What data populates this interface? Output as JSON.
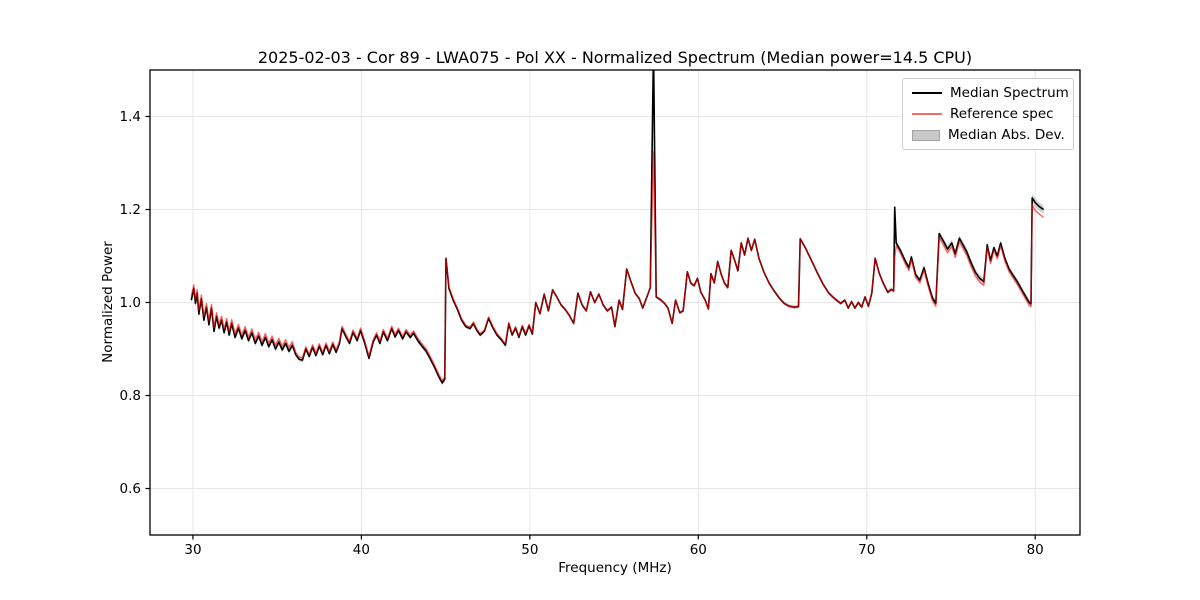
{
  "chart_data": {
    "type": "line",
    "title": "2025-02-03 - Cor 89 - LWA075 - Pol XX - Normalized Spectrum (Median power=14.5 CPU)",
    "xlabel": "Frequency (MHz)",
    "ylabel": "Normalized Power",
    "xlim": [
      27.45,
      82.66
    ],
    "ylim": [
      0.5,
      1.5
    ],
    "xticks": [
      30,
      40,
      50,
      60,
      70,
      80
    ],
    "xticklabels": [
      "30",
      "40",
      "50",
      "60",
      "70",
      "80"
    ],
    "yticks": [
      0.6,
      0.8,
      1.0,
      1.2,
      1.4
    ],
    "yticklabels": [
      "0.6",
      "0.8",
      "1.0",
      "1.2",
      "1.4"
    ],
    "grid": true,
    "grid_color": "#e7e7e7",
    "legend_position": "upper right",
    "series": [
      {
        "name": "Median Spectrum",
        "style": "line",
        "color": "#000000",
        "legend_color": "#000000"
      },
      {
        "name": "Reference spec",
        "style": "line",
        "color": "rgba(255,0,0,0.62)",
        "legend_color": "#f26a6a"
      },
      {
        "name": "Median Abs. Dev.",
        "style": "band",
        "color": "rgba(150,150,150,0.45)",
        "legend_color": "#c9c9c9",
        "legend_border": "#a3a3a3"
      }
    ],
    "points_format": [
      "freq_mhz",
      "median",
      "reference",
      "mad"
    ],
    "points": [
      [
        29.9,
        1.005,
        1.013,
        0.008
      ],
      [
        30.05,
        1.03,
        1.038,
        0.008
      ],
      [
        30.15,
        0.998,
        1.006,
        0.008
      ],
      [
        30.25,
        1.02,
        1.028,
        0.008
      ],
      [
        30.35,
        0.975,
        0.983,
        0.008
      ],
      [
        30.5,
        1.008,
        1.016,
        0.008
      ],
      [
        30.65,
        0.962,
        0.97,
        0.008
      ],
      [
        30.8,
        0.99,
        0.998,
        0.008
      ],
      [
        30.95,
        0.952,
        0.96,
        0.008
      ],
      [
        31.1,
        0.988,
        0.996,
        0.008
      ],
      [
        31.25,
        0.938,
        0.946,
        0.008
      ],
      [
        31.4,
        0.97,
        0.978,
        0.008
      ],
      [
        31.55,
        0.945,
        0.953,
        0.007
      ],
      [
        31.7,
        0.962,
        0.97,
        0.007
      ],
      [
        31.85,
        0.935,
        0.943,
        0.007
      ],
      [
        32.0,
        0.958,
        0.966,
        0.007
      ],
      [
        32.15,
        0.93,
        0.938,
        0.006
      ],
      [
        32.3,
        0.955,
        0.963,
        0.006
      ],
      [
        32.5,
        0.925,
        0.933,
        0.006
      ],
      [
        32.7,
        0.945,
        0.953,
        0.006
      ],
      [
        32.9,
        0.922,
        0.93,
        0.006
      ],
      [
        33.1,
        0.94,
        0.948,
        0.006
      ],
      [
        33.3,
        0.918,
        0.926,
        0.006
      ],
      [
        33.5,
        0.935,
        0.943,
        0.006
      ],
      [
        33.7,
        0.912,
        0.92,
        0.006
      ],
      [
        33.9,
        0.928,
        0.936,
        0.006
      ],
      [
        34.1,
        0.908,
        0.916,
        0.006
      ],
      [
        34.3,
        0.925,
        0.933,
        0.006
      ],
      [
        34.5,
        0.905,
        0.913,
        0.006
      ],
      [
        34.7,
        0.92,
        0.928,
        0.006
      ],
      [
        34.9,
        0.9,
        0.908,
        0.006
      ],
      [
        35.1,
        0.915,
        0.923,
        0.006
      ],
      [
        35.3,
        0.898,
        0.906,
        0.006
      ],
      [
        35.5,
        0.912,
        0.92,
        0.006
      ],
      [
        35.7,
        0.895,
        0.903,
        0.006
      ],
      [
        35.9,
        0.908,
        0.916,
        0.006
      ],
      [
        36.1,
        0.888,
        0.893,
        0.005
      ],
      [
        36.3,
        0.878,
        0.883,
        0.005
      ],
      [
        36.5,
        0.876,
        0.881,
        0.005
      ],
      [
        36.7,
        0.9,
        0.905,
        0.005
      ],
      [
        36.9,
        0.884,
        0.889,
        0.005
      ],
      [
        37.1,
        0.904,
        0.909,
        0.005
      ],
      [
        37.3,
        0.886,
        0.891,
        0.005
      ],
      [
        37.5,
        0.906,
        0.911,
        0.005
      ],
      [
        37.7,
        0.888,
        0.893,
        0.005
      ],
      [
        37.9,
        0.908,
        0.913,
        0.005
      ],
      [
        38.1,
        0.89,
        0.895,
        0.005
      ],
      [
        38.3,
        0.91,
        0.915,
        0.005
      ],
      [
        38.5,
        0.893,
        0.898,
        0.005
      ],
      [
        38.7,
        0.912,
        0.917,
        0.005
      ],
      [
        38.85,
        0.944,
        0.949,
        0.005
      ],
      [
        39.1,
        0.925,
        0.93,
        0.005
      ],
      [
        39.3,
        0.912,
        0.917,
        0.005
      ],
      [
        39.5,
        0.936,
        0.941,
        0.005
      ],
      [
        39.75,
        0.918,
        0.923,
        0.005
      ],
      [
        39.95,
        0.94,
        0.945,
        0.005
      ],
      [
        40.2,
        0.912,
        0.917,
        0.005
      ],
      [
        40.45,
        0.88,
        0.885,
        0.005
      ],
      [
        40.7,
        0.915,
        0.92,
        0.005
      ],
      [
        40.9,
        0.93,
        0.935,
        0.005
      ],
      [
        41.1,
        0.912,
        0.917,
        0.005
      ],
      [
        41.3,
        0.937,
        0.942,
        0.005
      ],
      [
        41.55,
        0.918,
        0.923,
        0.005
      ],
      [
        41.8,
        0.944,
        0.949,
        0.005
      ],
      [
        42.0,
        0.926,
        0.931,
        0.005
      ],
      [
        42.2,
        0.94,
        0.945,
        0.005
      ],
      [
        42.45,
        0.922,
        0.927,
        0.005
      ],
      [
        42.65,
        0.937,
        0.942,
        0.005
      ],
      [
        42.9,
        0.925,
        0.93,
        0.005
      ],
      [
        43.1,
        0.934,
        0.939,
        0.005
      ],
      [
        43.35,
        0.918,
        0.923,
        0.005
      ],
      [
        43.6,
        0.906,
        0.911,
        0.005
      ],
      [
        43.85,
        0.895,
        0.9,
        0.005
      ],
      [
        44.1,
        0.878,
        0.883,
        0.005
      ],
      [
        44.35,
        0.86,
        0.865,
        0.005
      ],
      [
        44.6,
        0.84,
        0.845,
        0.005
      ],
      [
        44.8,
        0.827,
        0.832,
        0.005
      ],
      [
        44.95,
        0.835,
        0.84,
        0.005
      ],
      [
        45.02,
        1.095,
        1.095,
        0.005
      ],
      [
        45.2,
        1.03,
        1.033,
        0.004
      ],
      [
        45.45,
        1.005,
        1.008,
        0.004
      ],
      [
        45.7,
        0.985,
        0.988,
        0.004
      ],
      [
        45.95,
        0.962,
        0.965,
        0.004
      ],
      [
        46.2,
        0.948,
        0.951,
        0.004
      ],
      [
        46.45,
        0.944,
        0.947,
        0.004
      ],
      [
        46.65,
        0.955,
        0.958,
        0.004
      ],
      [
        46.85,
        0.94,
        0.943,
        0.004
      ],
      [
        47.05,
        0.93,
        0.933,
        0.004
      ],
      [
        47.3,
        0.938,
        0.941,
        0.004
      ],
      [
        47.55,
        0.966,
        0.969,
        0.004
      ],
      [
        47.8,
        0.946,
        0.949,
        0.004
      ],
      [
        48.05,
        0.93,
        0.933,
        0.004
      ],
      [
        48.3,
        0.92,
        0.923,
        0.004
      ],
      [
        48.55,
        0.908,
        0.911,
        0.004
      ],
      [
        48.75,
        0.954,
        0.957,
        0.004
      ],
      [
        48.95,
        0.93,
        0.933,
        0.004
      ],
      [
        49.15,
        0.945,
        0.948,
        0.004
      ],
      [
        49.35,
        0.925,
        0.928,
        0.004
      ],
      [
        49.55,
        0.948,
        0.951,
        0.004
      ],
      [
        49.75,
        0.93,
        0.933,
        0.004
      ],
      [
        49.95,
        0.95,
        0.953,
        0.004
      ],
      [
        50.15,
        0.932,
        0.935,
        0.004
      ],
      [
        50.35,
        1.0,
        1.0,
        0.004
      ],
      [
        50.6,
        0.976,
        0.976,
        0.004
      ],
      [
        50.85,
        1.018,
        1.018,
        0.004
      ],
      [
        51.1,
        0.982,
        0.982,
        0.004
      ],
      [
        51.35,
        1.027,
        1.027,
        0.004
      ],
      [
        51.6,
        1.012,
        1.012,
        0.004
      ],
      [
        51.85,
        0.995,
        0.995,
        0.004
      ],
      [
        52.1,
        0.985,
        0.985,
        0.004
      ],
      [
        52.35,
        0.972,
        0.972,
        0.004
      ],
      [
        52.6,
        0.955,
        0.955,
        0.004
      ],
      [
        52.85,
        1.02,
        1.02,
        0.004
      ],
      [
        53.1,
        0.995,
        0.995,
        0.004
      ],
      [
        53.35,
        0.982,
        0.982,
        0.004
      ],
      [
        53.6,
        1.023,
        1.023,
        0.004
      ],
      [
        53.85,
        1.0,
        1.0,
        0.004
      ],
      [
        54.1,
        1.018,
        1.018,
        0.004
      ],
      [
        54.35,
        0.995,
        0.995,
        0.004
      ],
      [
        54.6,
        0.982,
        0.982,
        0.004
      ],
      [
        54.85,
        0.99,
        0.99,
        0.004
      ],
      [
        55.05,
        0.948,
        0.948,
        0.004
      ],
      [
        55.3,
        1.005,
        1.005,
        0.004
      ],
      [
        55.5,
        0.985,
        0.985,
        0.004
      ],
      [
        55.75,
        1.072,
        1.072,
        0.004
      ],
      [
        56.0,
        1.045,
        1.045,
        0.004
      ],
      [
        56.25,
        1.02,
        1.02,
        0.004
      ],
      [
        56.5,
        1.008,
        1.008,
        0.004
      ],
      [
        56.7,
        0.988,
        0.988,
        0.004
      ],
      [
        56.95,
        1.012,
        1.012,
        0.004
      ],
      [
        57.15,
        1.032,
        1.032,
        0.004
      ],
      [
        57.34,
        1.55,
        1.324,
        0.004
      ],
      [
        57.5,
        1.012,
        1.012,
        0.004
      ],
      [
        57.75,
        1.006,
        1.006,
        0.004
      ],
      [
        58.0,
        0.998,
        0.998,
        0.004
      ],
      [
        58.2,
        0.988,
        0.988,
        0.004
      ],
      [
        58.45,
        0.955,
        0.955,
        0.004
      ],
      [
        58.65,
        1.005,
        1.005,
        0.004
      ],
      [
        58.9,
        0.978,
        0.978,
        0.004
      ],
      [
        59.1,
        0.982,
        0.982,
        0.004
      ],
      [
        59.35,
        1.066,
        1.066,
        0.004
      ],
      [
        59.55,
        1.042,
        1.042,
        0.004
      ],
      [
        59.75,
        1.036,
        1.036,
        0.004
      ],
      [
        59.95,
        1.052,
        1.052,
        0.004
      ],
      [
        60.15,
        1.022,
        1.022,
        0.004
      ],
      [
        60.4,
        1.006,
        1.006,
        0.004
      ],
      [
        60.6,
        0.986,
        0.986,
        0.004
      ],
      [
        60.75,
        1.062,
        1.062,
        0.004
      ],
      [
        60.95,
        1.042,
        1.042,
        0.004
      ],
      [
        61.15,
        1.088,
        1.088,
        0.004
      ],
      [
        61.35,
        1.062,
        1.062,
        0.004
      ],
      [
        61.55,
        1.042,
        1.042,
        0.004
      ],
      [
        61.75,
        1.032,
        1.032,
        0.004
      ],
      [
        61.95,
        1.112,
        1.112,
        0.004
      ],
      [
        62.15,
        1.092,
        1.092,
        0.004
      ],
      [
        62.35,
        1.068,
        1.068,
        0.004
      ],
      [
        62.55,
        1.128,
        1.128,
        0.004
      ],
      [
        62.75,
        1.102,
        1.102,
        0.004
      ],
      [
        62.95,
        1.138,
        1.138,
        0.004
      ],
      [
        63.15,
        1.112,
        1.112,
        0.004
      ],
      [
        63.35,
        1.136,
        1.136,
        0.004
      ],
      [
        63.6,
        1.095,
        1.095,
        0.004
      ],
      [
        63.9,
        1.065,
        1.065,
        0.004
      ],
      [
        64.2,
        1.042,
        1.042,
        0.004
      ],
      [
        64.5,
        1.025,
        1.025,
        0.004
      ],
      [
        64.8,
        1.01,
        1.01,
        0.004
      ],
      [
        65.1,
        0.998,
        0.998,
        0.004
      ],
      [
        65.4,
        0.992,
        0.992,
        0.004
      ],
      [
        65.7,
        0.99,
        0.99,
        0.004
      ],
      [
        65.95,
        0.991,
        0.991,
        0.004
      ],
      [
        66.05,
        1.137,
        1.137,
        0.004
      ],
      [
        66.35,
        1.118,
        1.118,
        0.004
      ],
      [
        66.7,
        1.092,
        1.092,
        0.004
      ],
      [
        67.05,
        1.065,
        1.065,
        0.004
      ],
      [
        67.4,
        1.04,
        1.04,
        0.004
      ],
      [
        67.75,
        1.02,
        1.02,
        0.004
      ],
      [
        68.1,
        1.008,
        1.008,
        0.004
      ],
      [
        68.45,
        0.998,
        0.998,
        0.004
      ],
      [
        68.7,
        1.005,
        1.005,
        0.004
      ],
      [
        68.9,
        0.988,
        0.988,
        0.004
      ],
      [
        69.1,
        1.002,
        1.002,
        0.004
      ],
      [
        69.3,
        0.988,
        0.988,
        0.004
      ],
      [
        69.5,
        1.0,
        1.0,
        0.004
      ],
      [
        69.7,
        0.99,
        0.99,
        0.004
      ],
      [
        69.9,
        1.012,
        1.012,
        0.004
      ],
      [
        70.1,
        0.992,
        0.992,
        0.005
      ],
      [
        70.3,
        1.02,
        1.02,
        0.005
      ],
      [
        70.5,
        1.095,
        1.095,
        0.005
      ],
      [
        70.75,
        1.062,
        1.062,
        0.005
      ],
      [
        71.0,
        1.04,
        1.04,
        0.005
      ],
      [
        71.25,
        1.022,
        1.022,
        0.005
      ],
      [
        71.45,
        1.028,
        1.028,
        0.005
      ],
      [
        71.6,
        1.025,
        1.025,
        0.005
      ],
      [
        71.66,
        1.205,
        1.095,
        0.004
      ],
      [
        71.75,
        1.128,
        1.122,
        0.006
      ],
      [
        72.0,
        1.112,
        1.106,
        0.006
      ],
      [
        72.25,
        1.092,
        1.086,
        0.006
      ],
      [
        72.5,
        1.075,
        1.069,
        0.006
      ],
      [
        72.65,
        1.098,
        1.092,
        0.006
      ],
      [
        72.9,
        1.06,
        1.054,
        0.006
      ],
      [
        73.15,
        1.048,
        1.042,
        0.006
      ],
      [
        73.4,
        1.075,
        1.069,
        0.006
      ],
      [
        73.65,
        1.04,
        1.034,
        0.006
      ],
      [
        73.9,
        1.01,
        1.004,
        0.006
      ],
      [
        74.1,
        0.998,
        0.992,
        0.006
      ],
      [
        74.3,
        1.148,
        1.14,
        0.0075
      ],
      [
        74.55,
        1.132,
        1.124,
        0.0075
      ],
      [
        74.8,
        1.115,
        1.107,
        0.0075
      ],
      [
        75.05,
        1.128,
        1.12,
        0.0075
      ],
      [
        75.25,
        1.105,
        1.097,
        0.0075
      ],
      [
        75.5,
        1.138,
        1.13,
        0.0075
      ],
      [
        75.7,
        1.125,
        1.117,
        0.0075
      ],
      [
        75.95,
        1.108,
        1.1,
        0.0075
      ],
      [
        76.2,
        1.085,
        1.077,
        0.0075
      ],
      [
        76.45,
        1.065,
        1.057,
        0.0075
      ],
      [
        76.7,
        1.052,
        1.044,
        0.0075
      ],
      [
        76.95,
        1.045,
        1.037,
        0.0075
      ],
      [
        77.15,
        1.124,
        1.118,
        0.006
      ],
      [
        77.35,
        1.09,
        1.084,
        0.006
      ],
      [
        77.55,
        1.118,
        1.112,
        0.006
      ],
      [
        77.75,
        1.1,
        1.094,
        0.006
      ],
      [
        77.95,
        1.128,
        1.122,
        0.006
      ],
      [
        78.2,
        1.095,
        1.089,
        0.006
      ],
      [
        78.45,
        1.072,
        1.066,
        0.006
      ],
      [
        78.7,
        1.058,
        1.052,
        0.006
      ],
      [
        78.95,
        1.044,
        1.038,
        0.006
      ],
      [
        79.2,
        1.028,
        1.022,
        0.006
      ],
      [
        79.45,
        1.012,
        1.006,
        0.006
      ],
      [
        79.65,
        1.0,
        0.994,
        0.006
      ],
      [
        79.75,
        0.997,
        0.991,
        0.006
      ],
      [
        79.82,
        1.225,
        1.21,
        0.009
      ],
      [
        80.0,
        1.215,
        1.198,
        0.009
      ],
      [
        80.25,
        1.206,
        1.19,
        0.009
      ],
      [
        80.5,
        1.2,
        1.183,
        0.009
      ]
    ]
  }
}
